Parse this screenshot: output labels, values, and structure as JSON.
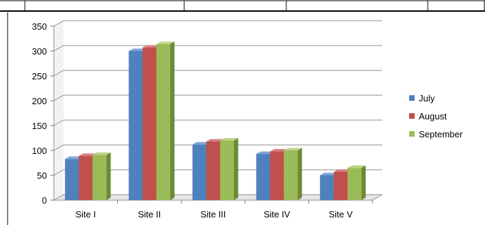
{
  "chart_data": {
    "type": "bar",
    "title": "",
    "xlabel": "",
    "ylabel": "",
    "categories": [
      "Site I",
      "Site II",
      "Site III",
      "Site IV",
      "Site V"
    ],
    "series": [
      {
        "name": "July",
        "color": "#4F81BD",
        "side": "#36608F",
        "top": "#7FA5D6",
        "values": [
          83,
          300,
          112,
          93,
          50
        ]
      },
      {
        "name": "August",
        "color": "#C0504D",
        "side": "#8E3331",
        "top": "#D8807E",
        "values": [
          89,
          307,
          118,
          98,
          57
        ]
      },
      {
        "name": "September",
        "color": "#9BBB59",
        "side": "#6E8A35",
        "top": "#BCD587",
        "values": [
          91,
          314,
          120,
          100,
          65
        ]
      }
    ],
    "ylim": [
      0,
      350
    ],
    "yticks": [
      0,
      50,
      100,
      150,
      200,
      250,
      300,
      350
    ],
    "grid": true,
    "legend": "right"
  }
}
